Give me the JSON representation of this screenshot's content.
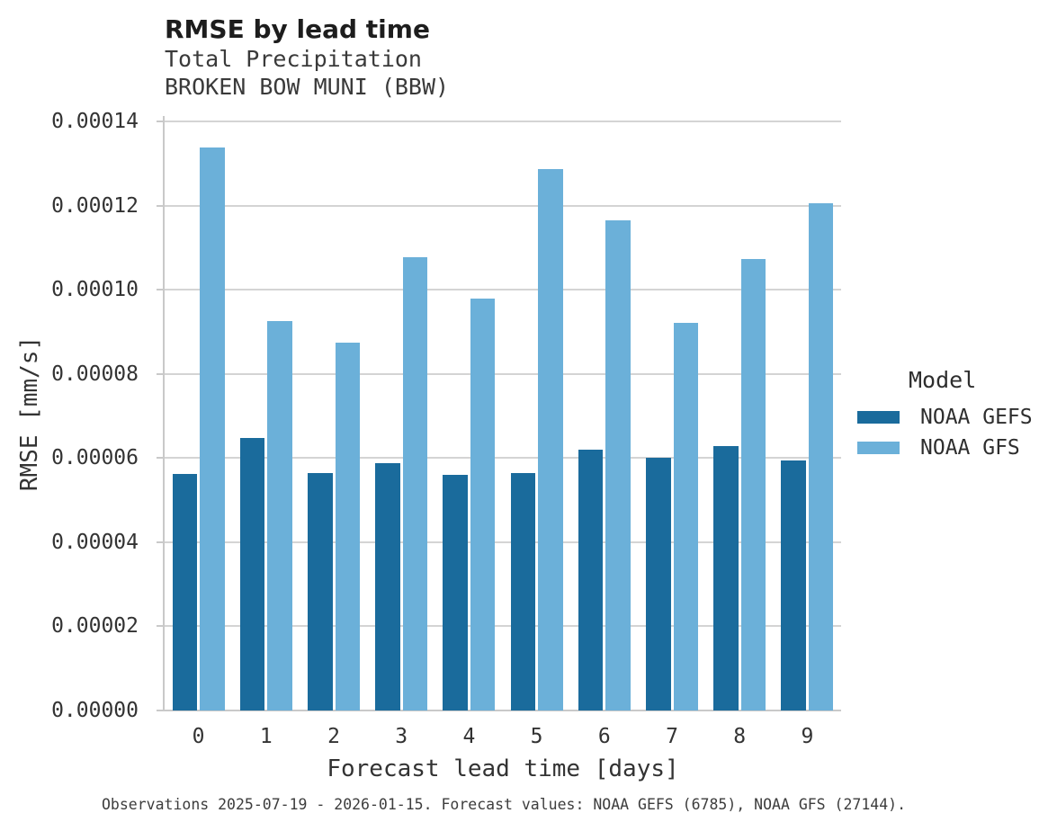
{
  "header": {
    "title": "RMSE by lead time",
    "subtitle_line1": "Total Precipitation",
    "subtitle_line2": "BROKEN BOW MUNI (BBW)"
  },
  "chart_data": {
    "type": "bar",
    "title": "RMSE by lead time",
    "subtitle": [
      "Total Precipitation",
      "BROKEN BOW MUNI (BBW)"
    ],
    "categories": [
      "0",
      "1",
      "2",
      "3",
      "4",
      "5",
      "6",
      "7",
      "8",
      "9"
    ],
    "series": [
      {
        "name": "NOAA GEFS",
        "color": "#1a6b9c",
        "values": [
          5.63e-05,
          6.47e-05,
          5.65e-05,
          5.88e-05,
          5.61e-05,
          5.65e-05,
          6.2e-05,
          6.01e-05,
          6.28e-05,
          5.94e-05
        ]
      },
      {
        "name": "NOAA GFS",
        "color": "#6bb0d9",
        "values": [
          0.0001338,
          9.25e-05,
          8.74e-05,
          0.0001078,
          9.8e-05,
          0.0001287,
          0.0001165,
          9.22e-05,
          0.0001073,
          0.0001206
        ]
      }
    ],
    "xlabel": "Forecast lead time [days]",
    "ylabel": "RMSE [mm/s]",
    "ylim": [
      0,
      0.00014
    ],
    "yticks": {
      "values": [
        0,
        2e-05,
        4e-05,
        6e-05,
        8e-05,
        0.0001,
        0.00012,
        0.00014
      ],
      "labels": [
        "0.00000",
        "0.00002",
        "0.00004",
        "0.00006",
        "0.00008",
        "0.00010",
        "0.00012",
        "0.00014"
      ]
    },
    "grid": true,
    "legend_title": "Model",
    "legend_position": "right"
  },
  "footer": {
    "caption": "Observations 2025-07-19 - 2026-01-15. Forecast values: NOAA GEFS (6785), NOAA GFS (27144)."
  }
}
